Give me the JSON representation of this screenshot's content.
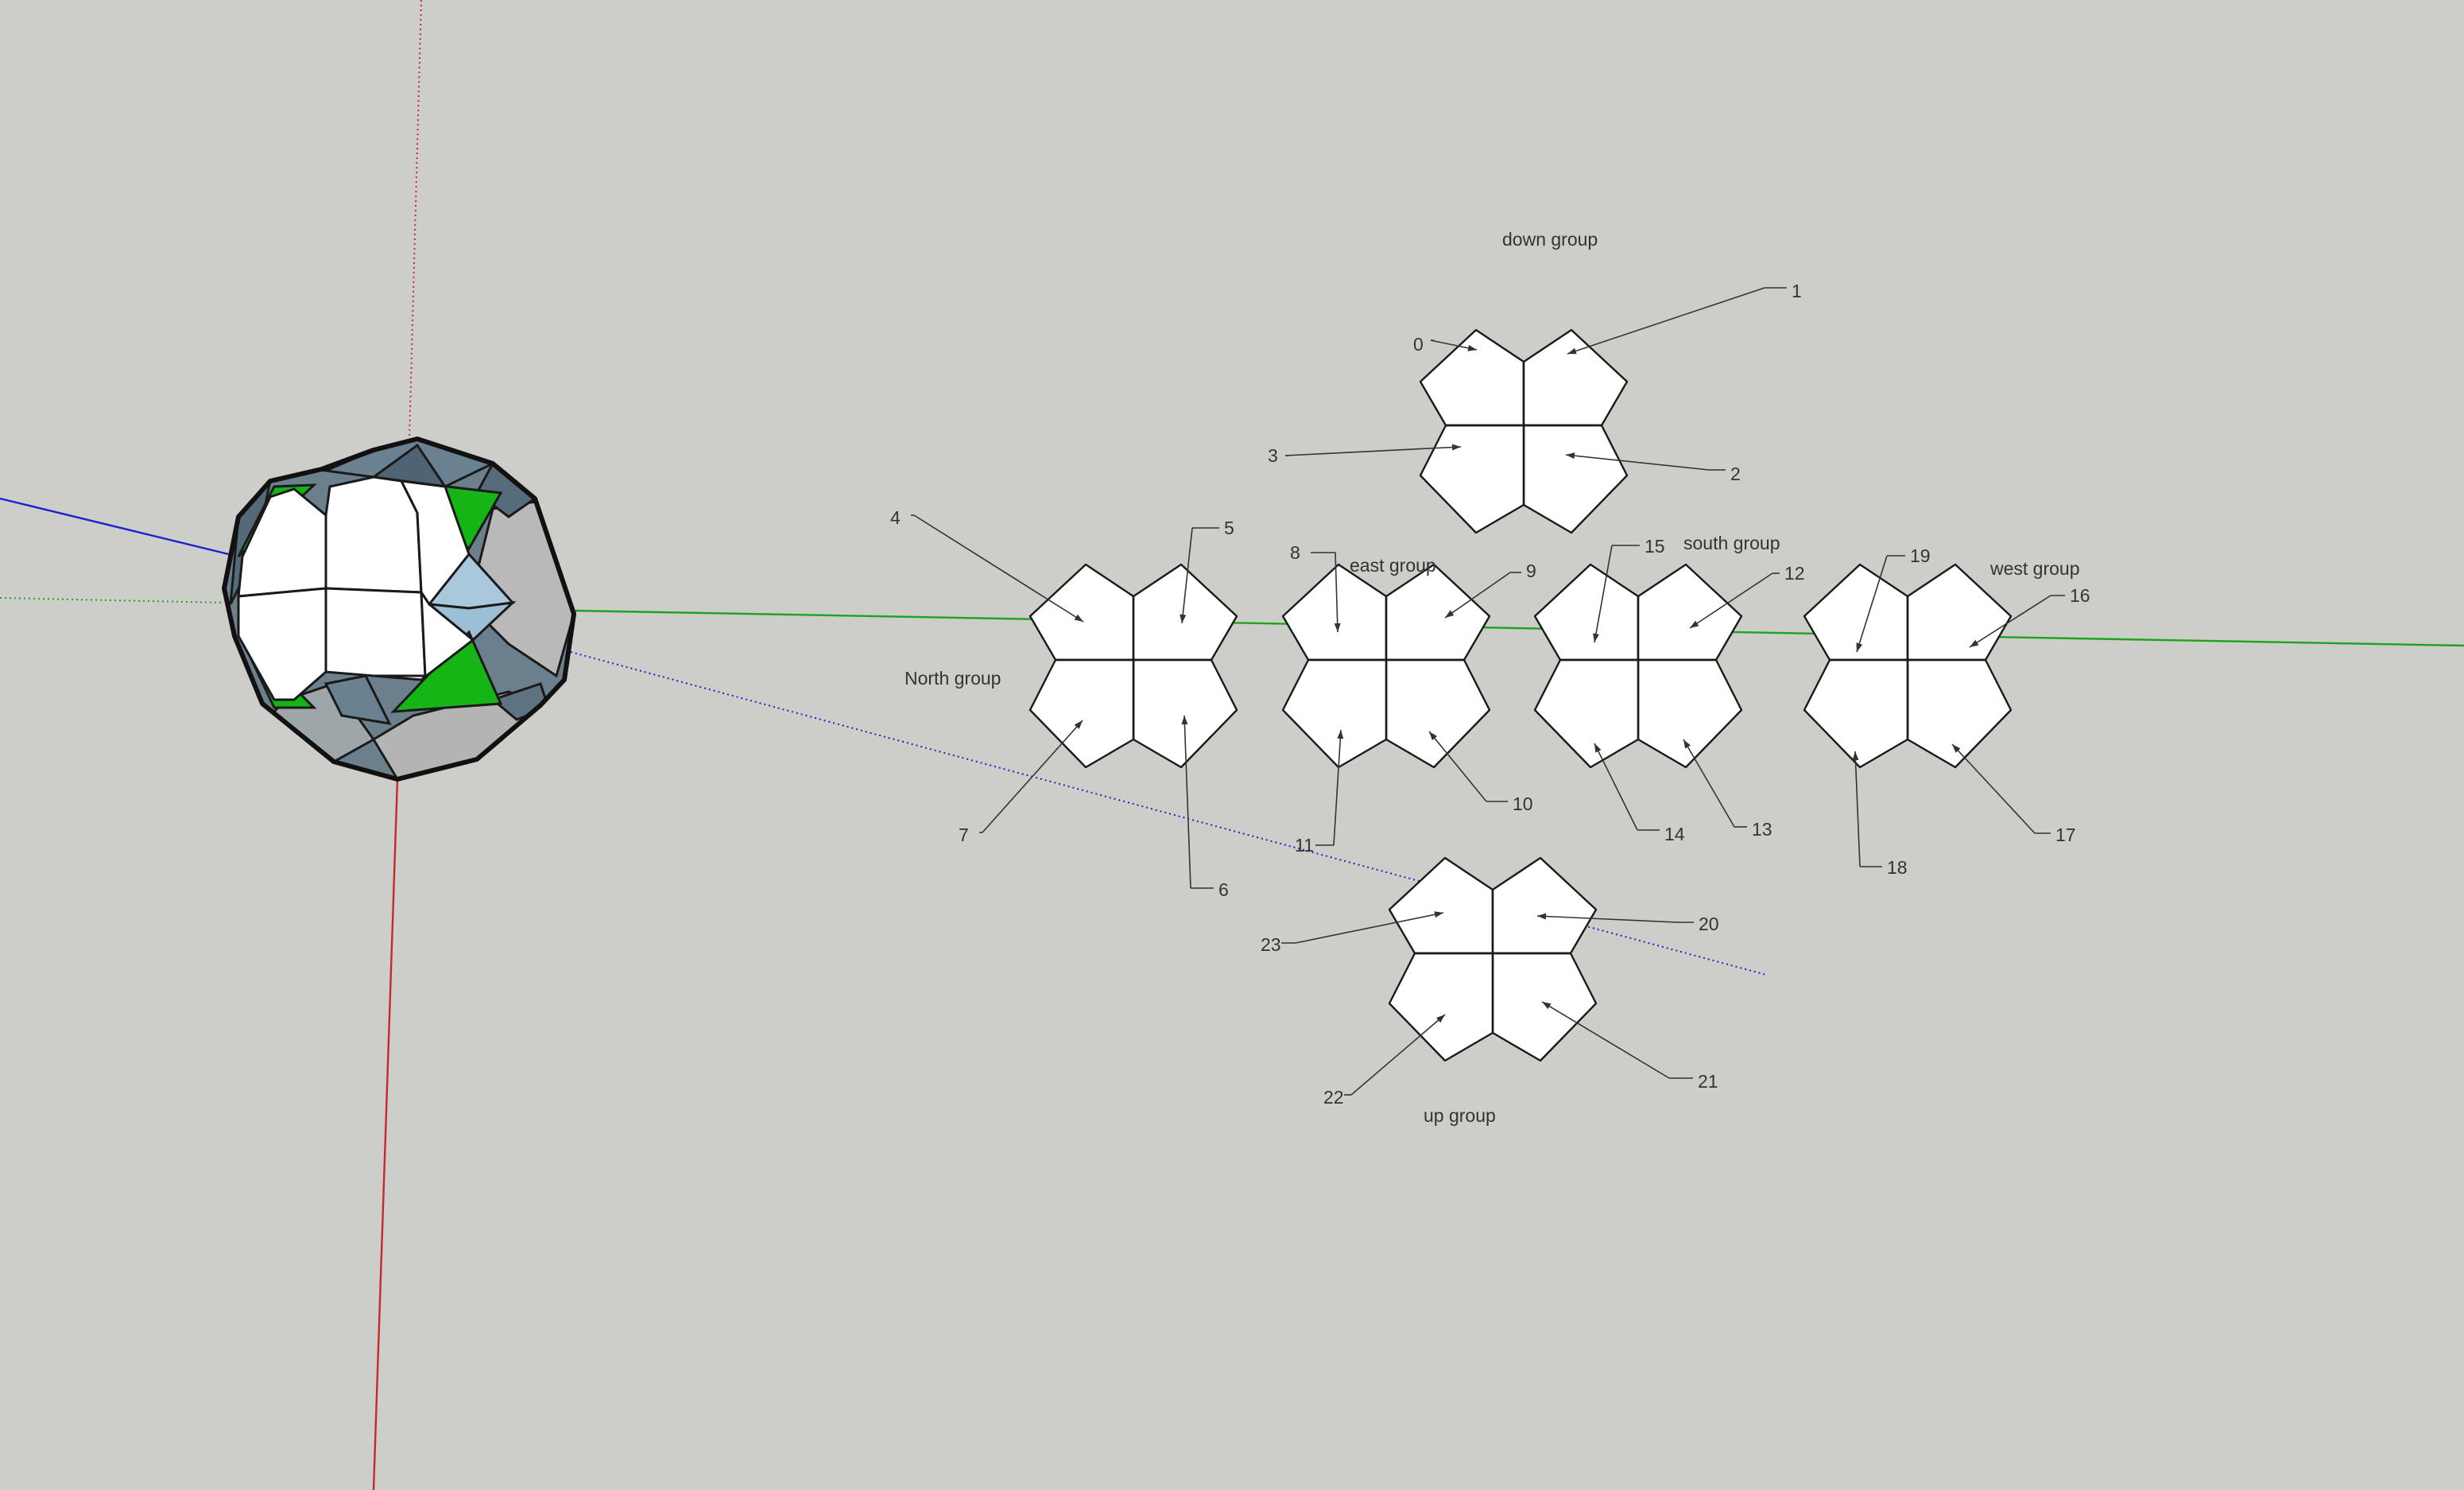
{
  "scene": {
    "background_color": "#cdcdc9",
    "axis_colors": {
      "red": "#c8282d",
      "green": "#1fa31f",
      "blue": "#1a22c8"
    }
  },
  "model": {
    "colors": {
      "white": "#ffffff",
      "green": "#15b515",
      "slate": "#5f7585",
      "light_blue": "#a9c8dc",
      "grey": "#b9b9b9",
      "edge": "#1a1a1a"
    }
  },
  "groups": [
    {
      "id": "down",
      "label": "down group",
      "pieces": [
        "0",
        "1",
        "2",
        "3"
      ]
    },
    {
      "id": "north",
      "label": "North group",
      "pieces": [
        "4",
        "5",
        "6",
        "7"
      ]
    },
    {
      "id": "east",
      "label": "east group",
      "pieces": [
        "8",
        "9",
        "10",
        "11"
      ]
    },
    {
      "id": "south",
      "label": "south group",
      "pieces": [
        "12",
        "13",
        "14",
        "15"
      ]
    },
    {
      "id": "west",
      "label": "west group",
      "pieces": [
        "16",
        "17",
        "18",
        "19"
      ]
    },
    {
      "id": "up",
      "label": "up group",
      "pieces": [
        "20",
        "21",
        "22",
        "23"
      ]
    }
  ]
}
